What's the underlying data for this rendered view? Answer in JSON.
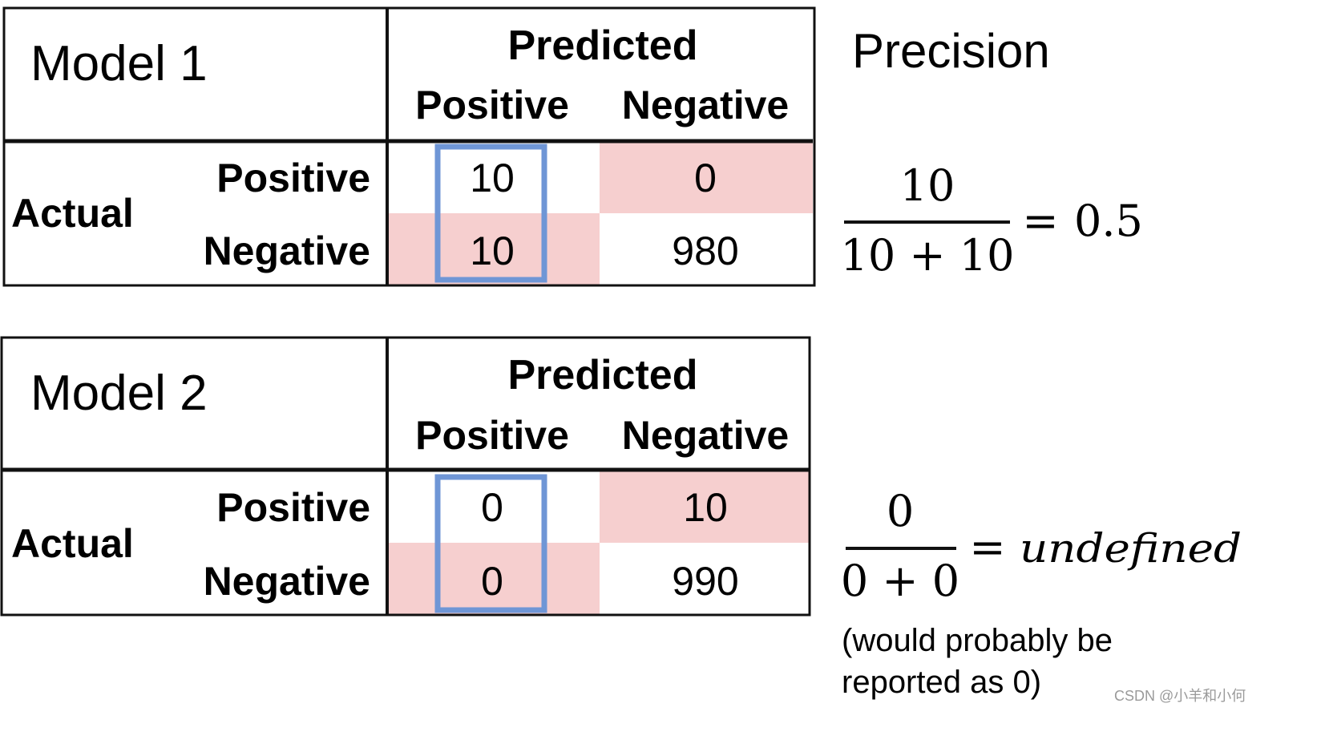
{
  "colors": {
    "cell_highlight": "#f6cfcf",
    "box_outline": "#6f96d6",
    "line": "#111111",
    "text": "#000000",
    "watermark": "#9a9a9a"
  },
  "models": [
    {
      "title": "Model 1",
      "predicted_label": "Predicted",
      "col_labels": [
        "Positive",
        "Negative"
      ],
      "actual_label": "Actual",
      "row_labels": [
        "Positive",
        "Negative"
      ],
      "cells": [
        [
          "10",
          "0"
        ],
        [
          "10",
          "980"
        ]
      ],
      "formula": {
        "numerator": "10",
        "denominator": "10 + 10",
        "equals": "=",
        "result": "0.5"
      }
    },
    {
      "title": "Model 2",
      "predicted_label": "Predicted",
      "col_labels": [
        "Positive",
        "Negative"
      ],
      "actual_label": "Actual",
      "row_labels": [
        "Positive",
        "Negative"
      ],
      "cells": [
        [
          "0",
          "10"
        ],
        [
          "0",
          "990"
        ]
      ],
      "formula": {
        "numerator": "0",
        "denominator": "0 + 0",
        "equals": "=",
        "result": "undefined"
      },
      "note_lines": [
        "(would probably be",
        "reported as 0)"
      ]
    }
  ],
  "heading": "Precision",
  "watermark": "CSDN @小羊和小何"
}
